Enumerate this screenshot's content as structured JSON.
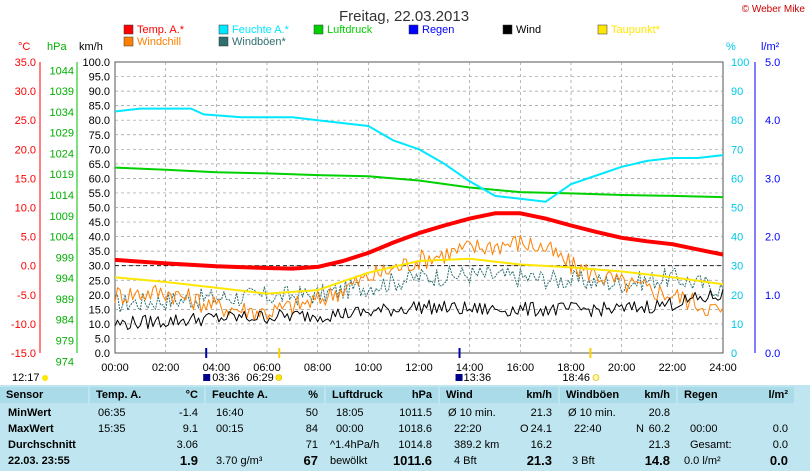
{
  "header": {
    "title": "Freitag, 22.03.2013",
    "copyright": "© Weber Mike"
  },
  "legend": [
    {
      "label": "Temp. A.*",
      "color": "#ff0000",
      "row": 0
    },
    {
      "label": "Feuchte A.*",
      "color": "#00e8ff",
      "row": 0
    },
    {
      "label": "Luftdruck",
      "color": "#00d000",
      "row": 0
    },
    {
      "label": "Regen",
      "color": "#0000ff",
      "row": 0
    },
    {
      "label": "Wind",
      "color": "#000000",
      "row": 0
    },
    {
      "label": "Taupunkt*",
      "color": "#ffe600",
      "row": 0
    },
    {
      "label": "Windchill",
      "color": "#ff8000",
      "row": 1
    },
    {
      "label": "Windböen*",
      "color": "#2f6f6f",
      "row": 1
    }
  ],
  "axes": {
    "temp_unit": "°C",
    "press_unit": "hPa",
    "wind_unit": "km/h",
    "hum_unit": "%",
    "rain_unit": "l/m²",
    "temp_ticks": [
      "35.0",
      "30.0",
      "25.0",
      "20.0",
      "15.0",
      "10.0",
      "5.0",
      "0.0",
      "-5.0",
      "-10.0",
      "-15.0"
    ],
    "press_ticks": [
      "1044",
      "1039",
      "1034",
      "1029",
      "1024",
      "1019",
      "1014",
      "1009",
      "1004",
      "999",
      "994",
      "989",
      "984",
      "979",
      "974"
    ],
    "wind_ticks": [
      "100.0",
      "95.0",
      "90.0",
      "85.0",
      "80.0",
      "75.0",
      "70.0",
      "65.0",
      "60.0",
      "55.0",
      "50.0",
      "45.0",
      "40.0",
      "35.0",
      "30.0",
      "25.0",
      "20.0",
      "15.0",
      "10.0",
      "5.0",
      "0.0"
    ],
    "hum_ticks": [
      "100",
      "90",
      "80",
      "70",
      "60",
      "50",
      "40",
      "30",
      "20",
      "10",
      "0"
    ],
    "rain_ticks": [
      "5.0",
      "4.0",
      "3.0",
      "2.0",
      "1.0",
      "0.0"
    ],
    "x_ticks": [
      "00:00",
      "02:00",
      "04:00",
      "06:00",
      "08:00",
      "10:00",
      "12:00",
      "14:00",
      "16:00",
      "18:00",
      "20:00",
      "22:00",
      "24:00"
    ]
  },
  "markers": {
    "time_now": "12:17",
    "moonrise": "03:36",
    "sunrise": "06:29",
    "moonset": "13:36",
    "sunset": "18:46"
  },
  "chart_data": {
    "type": "line",
    "x_unit": "hours",
    "xlim": [
      0,
      24
    ],
    "series": [
      {
        "name": "Temp. A.*",
        "axis": "°C",
        "color": "#ff0000",
        "width": 4,
        "points": [
          [
            0,
            1
          ],
          [
            2,
            0.4
          ],
          [
            4,
            -0.1
          ],
          [
            6,
            -0.4
          ],
          [
            7,
            -0.5
          ],
          [
            8,
            -0.2
          ],
          [
            9,
            0.8
          ],
          [
            10,
            2.2
          ],
          [
            11,
            4.0
          ],
          [
            12,
            5.6
          ],
          [
            13,
            6.9
          ],
          [
            14,
            8.1
          ],
          [
            15,
            9.0
          ],
          [
            16,
            9.0
          ],
          [
            17,
            8.1
          ],
          [
            18,
            6.9
          ],
          [
            19,
            5.8
          ],
          [
            20,
            4.8
          ],
          [
            21,
            4.2
          ],
          [
            22,
            3.7
          ],
          [
            23,
            2.8
          ],
          [
            24,
            1.9
          ]
        ]
      },
      {
        "name": "Feuchte A.*",
        "axis": "%",
        "color": "#00e8ff",
        "width": 2,
        "points": [
          [
            0,
            83
          ],
          [
            1,
            84
          ],
          [
            2,
            84
          ],
          [
            3,
            84
          ],
          [
            3.5,
            82
          ],
          [
            5,
            81
          ],
          [
            7,
            81
          ],
          [
            8,
            80
          ],
          [
            9,
            79
          ],
          [
            10,
            78
          ],
          [
            11,
            73
          ],
          [
            12,
            70
          ],
          [
            13,
            65
          ],
          [
            14,
            59
          ],
          [
            15,
            54
          ],
          [
            16,
            53
          ],
          [
            17,
            52
          ],
          [
            18,
            58
          ],
          [
            19,
            61
          ],
          [
            20,
            64
          ],
          [
            21,
            66
          ],
          [
            22,
            67
          ],
          [
            23,
            67
          ],
          [
            24,
            68
          ]
        ]
      },
      {
        "name": "Luftdruck",
        "axis": "hPa",
        "color": "#00d000",
        "width": 2,
        "points": [
          [
            0,
            1018.6
          ],
          [
            2,
            1018.1
          ],
          [
            4,
            1017.5
          ],
          [
            6,
            1017.2
          ],
          [
            8,
            1016.8
          ],
          [
            10,
            1016.5
          ],
          [
            12,
            1015.5
          ],
          [
            14,
            1013.8
          ],
          [
            16,
            1012.7
          ],
          [
            18,
            1012.4
          ],
          [
            20,
            1012.0
          ],
          [
            22,
            1011.8
          ],
          [
            24,
            1011.5
          ]
        ]
      },
      {
        "name": "Taupunkt*",
        "axis": "°C",
        "color": "#ffe600",
        "width": 2,
        "points": [
          [
            0,
            -2.0
          ],
          [
            2,
            -2.8
          ],
          [
            4,
            -3.8
          ],
          [
            6,
            -4.8
          ],
          [
            8,
            -4.2
          ],
          [
            10,
            -1.2
          ],
          [
            12,
            0.8
          ],
          [
            14,
            1.2
          ],
          [
            16,
            0.2
          ],
          [
            18,
            -0.3
          ],
          [
            20,
            -1.0
          ],
          [
            22,
            -2.0
          ],
          [
            24,
            -3.2
          ]
        ]
      },
      {
        "name": "Windchill",
        "axis": "°C",
        "color": "#ff8000",
        "width": 1,
        "noise": 1.8,
        "points": [
          [
            0,
            -5
          ],
          [
            2,
            -4.5
          ],
          [
            4,
            -7
          ],
          [
            6,
            -8
          ],
          [
            8,
            -6
          ],
          [
            10,
            -2
          ],
          [
            12,
            1
          ],
          [
            14,
            3
          ],
          [
            16,
            4
          ],
          [
            17,
            3
          ],
          [
            18,
            0
          ],
          [
            20,
            -3
          ],
          [
            22,
            -5
          ],
          [
            24,
            -8
          ]
        ]
      },
      {
        "name": "Windböen*",
        "axis": "km/h",
        "color": "#2f6f6f",
        "width": 1,
        "dash": true,
        "noise": 3.5,
        "points": [
          [
            0,
            17
          ],
          [
            4,
            19
          ],
          [
            8,
            20
          ],
          [
            10,
            23
          ],
          [
            12,
            26
          ],
          [
            14,
            27
          ],
          [
            16,
            26
          ],
          [
            18,
            25
          ],
          [
            20,
            24
          ],
          [
            22,
            26
          ],
          [
            24,
            22
          ]
        ]
      },
      {
        "name": "Wind",
        "axis": "km/h",
        "color": "#000000",
        "width": 1,
        "noise": 2.5,
        "points": [
          [
            0,
            10
          ],
          [
            4,
            12
          ],
          [
            8,
            13
          ],
          [
            10,
            14
          ],
          [
            12,
            16
          ],
          [
            14,
            15
          ],
          [
            16,
            15
          ],
          [
            18,
            15
          ],
          [
            20,
            15
          ],
          [
            22,
            17
          ],
          [
            24,
            20
          ]
        ]
      }
    ]
  },
  "table": {
    "sensor": {
      "h": "Sensor",
      "r1": "MinWert",
      "r2": "MaxWert",
      "r3": "Durchschnitt",
      "r4": "22.03. 23:55"
    },
    "temp": {
      "h": "Temp. A.",
      "u": "°C",
      "r1a": "06:35",
      "r1b": "-1.4",
      "r2a": "15:35",
      "r2b": "9.1",
      "r3b": "3.06",
      "r4b": "1.9"
    },
    "hum": {
      "h": "Feuchte A.",
      "u": "%",
      "r1a": "16:40",
      "r1b": "50",
      "r2a": "00:15",
      "r2b": "84",
      "r3b": "71",
      "r4a": "3.70 g/m³",
      "r4b": "67"
    },
    "press": {
      "h": "Luftdruck",
      "u": "hPa",
      "r1a": "18:05",
      "r1b": "1011.5",
      "r2a": "00:00",
      "r2b": "1018.6",
      "r3a": "^1.4hPa/h",
      "r3b": "1014.8",
      "r4a": "bewölkt",
      "r4b": "1011.6"
    },
    "wind": {
      "h": "Wind",
      "u": "km/h",
      "r1a": "Ø 10 min.",
      "r1b": "21.3",
      "r2a": "22:20",
      "r2c": "O",
      "r2b": "24.1",
      "r3a": "389.2 km",
      "r3b": "16.2",
      "r4a": "4 Bft",
      "r4b": "21.3"
    },
    "gust": {
      "h": "Windböen",
      "u": "km/h",
      "r1a": "Ø 10 min.",
      "r1b": "20.8",
      "r2a": "22:40",
      "r2c": "N",
      "r2b": "60.2",
      "r3b": "21.3",
      "r4a": "3 Bft",
      "r4b": "14.8"
    },
    "rain": {
      "h": "Regen",
      "u": "l/m²",
      "r2a": "00:00",
      "r2b": "0.0",
      "r3a": "Gesamt:",
      "r3b": "0.0",
      "r4a": "0.0 l/m²",
      "r4b": "0.0"
    }
  }
}
